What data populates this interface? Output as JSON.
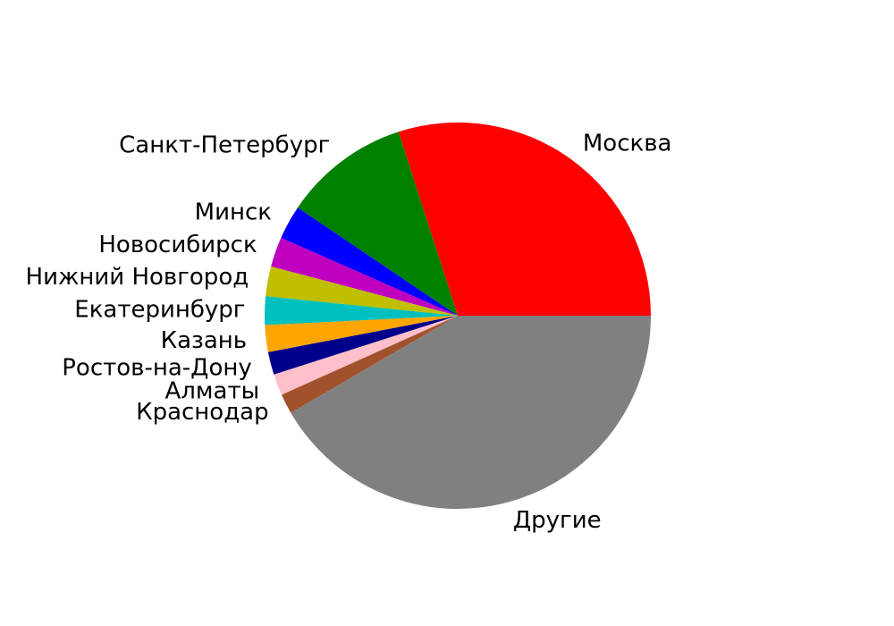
{
  "chart_data": {
    "type": "pie",
    "title": "",
    "slices": [
      {
        "label": "Москва",
        "value": 25.2,
        "color": "#ff0000"
      },
      {
        "label": "Санкт-Петербург",
        "value": 8.9,
        "color": "#008000"
      },
      {
        "label": "Минск",
        "value": 2.4,
        "color": "#0000ff"
      },
      {
        "label": "Новосибирск",
        "value": 2.1,
        "color": "#bf00bf"
      },
      {
        "label": "Нижний Новгород",
        "value": 2.1,
        "color": "#bfbf00"
      },
      {
        "label": "Екатеринбург",
        "value": 2.0,
        "color": "#00bfbf"
      },
      {
        "label": "Казань",
        "value": 1.9,
        "color": "#ffa500"
      },
      {
        "label": "Ростов-на-Дону",
        "value": 1.6,
        "color": "#00008b"
      },
      {
        "label": "Алматы",
        "value": 1.5,
        "color": "#ffc0cb"
      },
      {
        "label": "Краснодар",
        "value": 1.4,
        "color": "#a0522d"
      },
      {
        "label": "Другие",
        "value": 35.0,
        "color": "#808080"
      }
    ],
    "start_angle_deg": 0,
    "direction": "counterclockwise",
    "legend": "none"
  }
}
